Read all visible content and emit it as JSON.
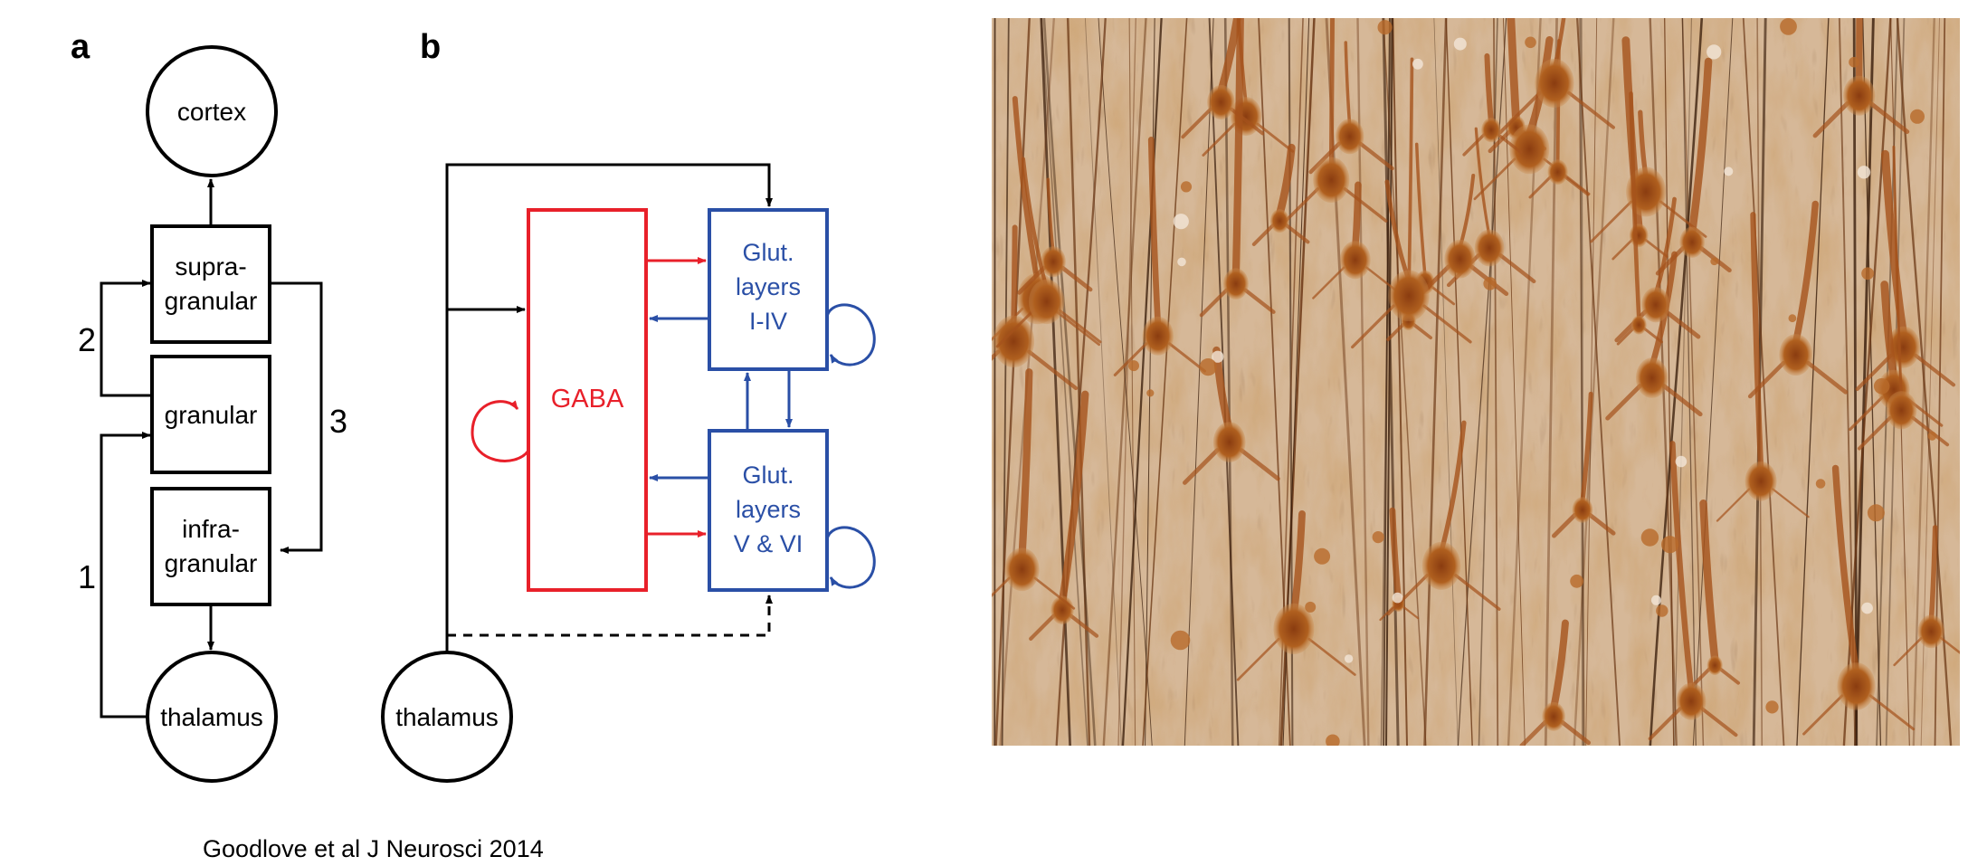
{
  "panel_a": {
    "letter": "a",
    "nodes": {
      "cortex": "cortex",
      "supragranular": [
        "supra-",
        "granular"
      ],
      "granular": "granular",
      "infragranular": [
        "infra-",
        "granular"
      ],
      "thalamus": "thalamus"
    },
    "pathway_numbers": [
      "1",
      "2",
      "3"
    ]
  },
  "panel_b": {
    "letter": "b",
    "gaba_label": "GABA",
    "glut_upper": [
      "Glut.",
      "layers",
      "I-IV"
    ],
    "glut_lower": [
      "Glut.",
      "layers",
      "V & VI"
    ],
    "thalamus": "thalamus"
  },
  "credit": "Goodlove et al J Neurosci 2014",
  "colors": {
    "gaba": "#e8202a",
    "glut": "#2a4fa6",
    "stain_base": "#c8a07a",
    "neuron": "#a0501c"
  },
  "micrograph": {
    "description_icon": "brain-tissue-micrograph"
  }
}
